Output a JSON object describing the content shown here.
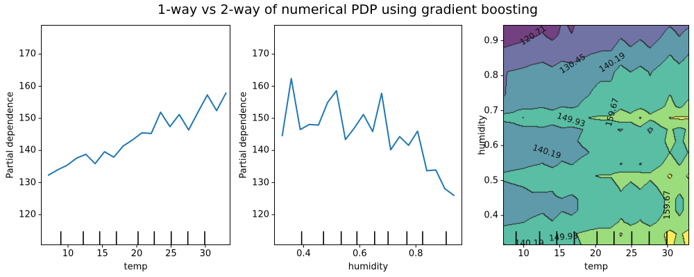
{
  "title": "1-way vs 2-way of numerical PDP using gradient boosting",
  "colors": {
    "line": "#1f77b4",
    "axis": "#000000",
    "contour_line": "#1e1e1e",
    "contour_bands": [
      "#734080",
      "#7173a5",
      "#5f9aaa",
      "#59bea3",
      "#9bdc7c",
      "#feed5b"
    ]
  },
  "chart_data": [
    {
      "type": "line",
      "xlabel": "temp",
      "ylabel": "Partial dependence",
      "xlim": [
        6.05,
        33.65
      ],
      "ylim": [
        110.5,
        179.1
      ],
      "xticks": [
        10,
        15,
        20,
        25,
        30
      ],
      "xticklabels": [
        "10",
        "15",
        "20",
        "25",
        "30"
      ],
      "yticks": [
        120,
        130,
        140,
        150,
        160,
        170
      ],
      "yticklabels": [
        "120",
        "130",
        "140",
        "150",
        "160",
        "170"
      ],
      "x": [
        7.15,
        8.51,
        9.87,
        11.23,
        12.59,
        13.95,
        15.31,
        16.67,
        18.03,
        19.39,
        20.76,
        22.12,
        23.48,
        24.84,
        26.2,
        27.56,
        28.92,
        30.28,
        31.64,
        33.0
      ],
      "y": [
        132.3,
        134.0,
        135.4,
        137.6,
        138.8,
        135.9,
        139.6,
        137.9,
        141.4,
        143.3,
        145.5,
        145.3,
        151.9,
        147.4,
        151.2,
        146.4,
        151.9,
        157.3,
        152.4,
        157.9
      ],
      "deciles": [
        8.95,
        12.22,
        14.61,
        17.04,
        20.2,
        22.56,
        25.03,
        27.45,
        29.91
      ]
    },
    {
      "type": "line",
      "xlabel": "humidity",
      "ylabel": "Partial dependence",
      "xlim": [
        0.295,
        0.965
      ],
      "ylim": [
        110.5,
        179.1
      ],
      "xticks": [
        0.4,
        0.6,
        0.8
      ],
      "xticklabels": [
        "0.4",
        "0.6",
        "0.8"
      ],
      "yticks": [
        120,
        130,
        140,
        150,
        160,
        170
      ],
      "yticklabels": [
        "120",
        "130",
        "140",
        "150",
        "160",
        "170"
      ],
      "x": [
        0.324,
        0.356,
        0.388,
        0.42,
        0.453,
        0.485,
        0.517,
        0.549,
        0.581,
        0.613,
        0.646,
        0.678,
        0.71,
        0.742,
        0.774,
        0.806,
        0.839,
        0.871,
        0.903,
        0.935
      ],
      "y": [
        144.6,
        162.4,
        146.5,
        148.1,
        147.9,
        154.9,
        158.6,
        143.4,
        147.0,
        151.2,
        145.9,
        157.8,
        140.2,
        144.3,
        141.6,
        146.0,
        133.7,
        133.9,
        128.1,
        126.0
      ],
      "deciles": [
        0.393,
        0.471,
        0.534,
        0.59,
        0.653,
        0.701,
        0.768,
        0.824,
        0.908
      ]
    },
    {
      "type": "contour",
      "xlabel": "temp",
      "ylabel": "humidity",
      "xlim": [
        7.15,
        33.0
      ],
      "ylim": [
        0.315,
        0.945
      ],
      "xticks": [
        10,
        15,
        20,
        25,
        30
      ],
      "xticklabels": [
        "10",
        "15",
        "20",
        "25",
        "30"
      ],
      "yticks": [
        0.4,
        0.5,
        0.6,
        0.7,
        0.8,
        0.9
      ],
      "yticklabels": [
        "0.4",
        "0.5",
        "0.6",
        "0.7",
        "0.8",
        "0.9"
      ],
      "levels": [
        120.71,
        130.45,
        140.19,
        149.93,
        159.67
      ],
      "deciles": [
        8.95,
        12.22,
        14.61,
        17.04,
        20.2,
        22.56,
        25.03,
        27.45,
        29.91
      ],
      "grid_x": [
        7.15,
        8.51,
        9.87,
        11.23,
        12.59,
        13.95,
        15.31,
        16.67,
        18.03,
        19.39,
        20.76,
        22.12,
        23.48,
        24.84,
        26.2,
        27.56,
        28.92,
        30.28,
        31.64,
        33.0
      ],
      "grid_y": [
        0.315,
        0.348,
        0.381,
        0.414,
        0.448,
        0.481,
        0.514,
        0.547,
        0.58,
        0.613,
        0.647,
        0.68,
        0.713,
        0.746,
        0.779,
        0.812,
        0.846,
        0.879,
        0.912,
        0.945
      ],
      "values": [
        [
          139.5,
          142,
          146,
          147.5,
          148.5,
          146.5,
          149,
          148,
          150,
          151.5,
          152.5,
          152.5,
          157,
          154,
          156.5,
          153.5,
          157,
          161,
          157.5,
          161.5
        ],
        [
          145,
          146,
          147,
          148.5,
          149.5,
          147.5,
          150,
          149,
          151,
          152.5,
          153.5,
          153.5,
          160.5,
          155,
          157.5,
          154.5,
          158,
          162,
          158.5,
          162.5
        ],
        [
          138,
          139,
          140,
          141.5,
          142.5,
          140.5,
          143,
          142,
          144,
          145.5,
          146.5,
          146.5,
          151,
          148,
          150.5,
          147.5,
          151,
          155,
          151.5,
          155.5
        ],
        [
          135,
          136,
          137,
          138.5,
          139.5,
          137.5,
          140,
          139,
          141,
          142.5,
          143.5,
          143.5,
          148,
          145,
          147.5,
          144.5,
          148,
          152,
          148.5,
          152.5
        ],
        [
          135,
          136,
          137,
          138.5,
          136.5,
          139.5,
          140,
          139,
          141,
          142.5,
          143.5,
          143.5,
          148,
          145,
          147.5,
          144.5,
          148,
          152,
          148.5,
          152.5
        ],
        [
          138,
          139,
          140,
          141.5,
          142.5,
          140.5,
          143,
          142,
          144,
          145.5,
          146.5,
          146.5,
          151,
          148,
          150.5,
          147.5,
          151,
          155,
          151.5,
          155.5
        ],
        [
          142,
          143,
          144,
          145.5,
          146.5,
          144.5,
          147,
          146,
          148,
          149.5,
          150.5,
          150.5,
          155,
          152,
          154.5,
          151.5,
          155,
          161,
          155.5,
          161.5
        ],
        [
          136,
          137,
          138,
          139.5,
          140.5,
          138.5,
          141,
          140,
          142,
          143.5,
          144.5,
          144.5,
          139.5,
          146,
          139.5,
          145.5,
          149,
          153,
          149.5,
          153.5
        ],
        [
          133,
          134,
          135,
          136.5,
          137.5,
          135.5,
          138,
          137,
          139,
          140.5,
          141.5,
          141.5,
          146,
          143,
          145.5,
          142.5,
          146,
          150,
          146.5,
          150.5
        ],
        [
          135,
          136,
          137,
          138.5,
          139.5,
          137.5,
          140,
          139,
          141,
          142.5,
          143.5,
          143.5,
          148,
          145,
          147.5,
          144.5,
          148,
          152,
          148.5,
          152.5
        ],
        [
          134,
          135,
          136,
          137.5,
          138.5,
          136.5,
          139,
          138,
          140,
          141.5,
          142.5,
          142.5,
          139,
          144,
          146.5,
          138,
          147,
          151,
          147.5,
          151.5
        ],
        [
          143,
          144,
          150.5,
          146.5,
          147.5,
          145.5,
          148,
          147,
          149,
          150.5,
          151.5,
          151.5,
          156,
          153,
          160.5,
          152.5,
          156,
          160,
          161,
          160.5
        ],
        [
          135,
          136,
          137,
          138.5,
          139.5,
          137.5,
          140,
          139,
          141,
          142.5,
          143.5,
          143.5,
          148,
          145,
          147.5,
          144.5,
          148,
          152,
          148.5,
          152.5
        ],
        [
          129.5,
          134,
          135,
          136.5,
          137.5,
          135.5,
          138,
          137,
          139,
          140.5,
          141.5,
          141.5,
          146,
          143,
          145.5,
          142.5,
          146,
          150,
          146.5,
          148.5
        ],
        [
          129.5,
          133,
          134,
          135.5,
          136.5,
          134.5,
          137,
          136,
          138,
          139.5,
          140.5,
          140.5,
          145,
          142,
          144.5,
          141.5,
          145,
          149,
          145.5,
          149.5
        ],
        [
          130,
          131,
          132,
          133.5,
          134.5,
          132.5,
          135,
          134,
          136,
          137.5,
          138.5,
          138.5,
          143,
          140,
          142.5,
          139.5,
          143,
          147,
          143.5,
          147.5
        ],
        [
          125,
          126,
          127,
          128.5,
          129.5,
          127.5,
          130,
          129,
          131,
          132.5,
          133.5,
          133.5,
          138,
          135,
          137.5,
          134.5,
          138,
          142,
          138.5,
          142.5
        ],
        [
          121,
          122,
          123,
          124.5,
          125.5,
          123.5,
          126,
          125,
          127,
          128.5,
          129.5,
          129.5,
          134,
          131,
          133.5,
          130.5,
          134,
          138,
          134.5,
          138.5
        ],
        [
          117,
          118,
          119,
          120.5,
          121.5,
          119.5,
          122,
          121,
          123,
          124.5,
          125.5,
          125.5,
          130,
          127,
          129.5,
          126.5,
          130,
          134,
          130.5,
          134.5
        ],
        [
          112,
          113,
          115,
          117,
          119.5,
          117,
          121.5,
          120,
          123,
          124.5,
          125.5,
          125,
          127.5,
          124,
          126.5,
          123.5,
          127,
          130,
          127,
          129.5
        ]
      ],
      "contour_labels": [
        {
          "text": "120.71",
          "temp": 11.3,
          "hum": 0.916,
          "rot": -33
        },
        {
          "text": "130.45",
          "temp": 16.8,
          "hum": 0.835,
          "rot": -33
        },
        {
          "text": "140.19",
          "temp": 22.3,
          "hum": 0.838,
          "rot": -33
        },
        {
          "text": "149.93",
          "temp": 16.6,
          "hum": 0.673,
          "rot": 18
        },
        {
          "text": "159.67",
          "temp": 22.3,
          "hum": 0.696,
          "rot": -75
        },
        {
          "text": "140.19",
          "temp": 13.2,
          "hum": 0.582,
          "rot": 18
        },
        {
          "text": "159.67",
          "temp": 29.9,
          "hum": 0.43,
          "rot": -90
        },
        {
          "text": "140.19",
          "temp": 10.8,
          "hum": 0.32,
          "rot": 0
        },
        {
          "text": "149.93",
          "temp": 15.5,
          "hum": 0.338,
          "rot": -5
        }
      ]
    }
  ]
}
